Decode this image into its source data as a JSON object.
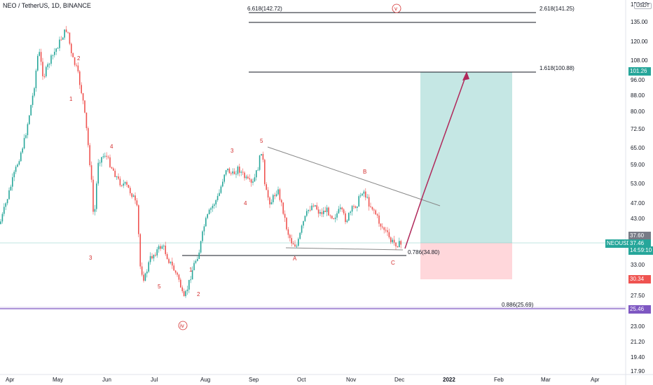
{
  "header": {
    "title": "NEO / TetherUS, 1D, BINANCE"
  },
  "unit_label": "USDT",
  "colors": {
    "up": "#26a69a",
    "down": "#ef5350",
    "target_zone": "#b2dfdb",
    "stop_zone": "#ffcdd2",
    "arrow": "#b0285a",
    "fib_line": "#131722",
    "support_line": "#7e57c2",
    "wave": "#d32f2f"
  },
  "price_axis": {
    "ticks": [
      "150.00",
      "135.00",
      "120.00",
      "108.00",
      "96.00",
      "88.00",
      "80.00",
      "72.50",
      "65.00",
      "59.00",
      "53.00",
      "47.00",
      "43.00",
      "33.00",
      "27.50",
      "23.00",
      "21.20",
      "19.40",
      "17.90"
    ]
  },
  "time_axis": {
    "ticks": [
      "Apr",
      "May",
      "Jun",
      "Jul",
      "Aug",
      "Sep",
      "Oct",
      "Nov",
      "Dec",
      "2022",
      "Feb",
      "Mar",
      "Apr"
    ]
  },
  "price_tags": {
    "target": "101.26",
    "entry": "37.60",
    "symbol": "NEOUSDT",
    "last": "37.46",
    "countdown": "14:59:10",
    "stop": "30.34",
    "support": "25.46"
  },
  "fib_levels": [
    {
      "label": "6.618(142.72)"
    },
    {
      "label": "2.618(141.25)"
    },
    {
      "label": "1.618(100.88)"
    },
    {
      "label": "0.786(34.80)"
    },
    {
      "label": "0.886(25.69)"
    }
  ],
  "wave_labels": {
    "top_v": "v",
    "iv": "iv",
    "labels": [
      "1",
      "2",
      "3",
      "4",
      "5",
      "1",
      "2",
      "3",
      "4",
      "5",
      "A",
      "B",
      "C",
      "1",
      "2",
      "3",
      "4",
      "5"
    ]
  }
}
